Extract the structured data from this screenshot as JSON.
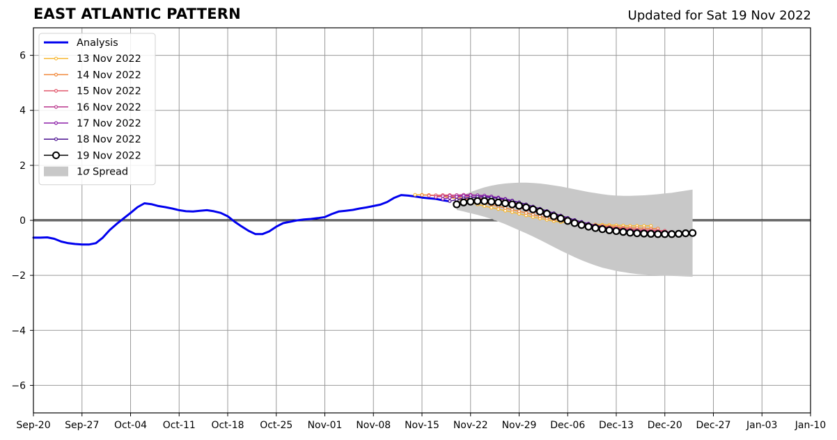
{
  "header": {
    "title": "EAST ATLANTIC PATTERN",
    "updated": "Updated for Sat 19 Nov 2022"
  },
  "chart_data": {
    "type": "line",
    "title": "EAST ATLANTIC PATTERN",
    "subtitle": "Updated for Sat 19 Nov 2022",
    "xlabel": "",
    "ylabel": "",
    "x_type": "date",
    "xlim": [
      "2022-09-20",
      "2023-01-10"
    ],
    "ylim": [
      -7,
      7
    ],
    "x_ticks": [
      "2022-09-20",
      "2022-09-27",
      "2022-10-04",
      "2022-10-11",
      "2022-10-18",
      "2022-10-25",
      "2022-11-01",
      "2022-11-08",
      "2022-11-15",
      "2022-11-22",
      "2022-11-29",
      "2022-12-06",
      "2022-12-13",
      "2022-12-20",
      "2022-12-27",
      "2023-01-03",
      "2023-01-10"
    ],
    "x_tick_labels": [
      "Sep-20",
      "Sep-27",
      "Oct-04",
      "Oct-11",
      "Oct-18",
      "Oct-25",
      "Nov-01",
      "Nov-08",
      "Nov-15",
      "Nov-22",
      "Nov-29",
      "Dec-06",
      "Dec-13",
      "Dec-20",
      "Dec-27",
      "Jan-03",
      "Jan-10"
    ],
    "y_ticks": [
      -6,
      -4,
      -2,
      0,
      2,
      4,
      6
    ],
    "y_tick_labels": [
      "−6",
      "−4",
      "−2",
      "0",
      "2",
      "4",
      "6"
    ],
    "grid": true,
    "zero_line": true,
    "legend_position": "top-left",
    "colors": {
      "analysis": "#0000ee",
      "spread": "#c8c8c8",
      "grid": "#999999"
    },
    "series": [
      {
        "name": "Analysis",
        "color": "#0000ee",
        "style": "thick-line",
        "points": [
          [
            "2022-09-20",
            -0.63
          ],
          [
            "2022-09-21",
            -0.63
          ],
          [
            "2022-09-22",
            -0.62
          ],
          [
            "2022-09-23",
            -0.67
          ],
          [
            "2022-09-24",
            -0.77
          ],
          [
            "2022-09-25",
            -0.83
          ],
          [
            "2022-09-26",
            -0.86
          ],
          [
            "2022-09-27",
            -0.88
          ],
          [
            "2022-09-28",
            -0.88
          ],
          [
            "2022-09-29",
            -0.83
          ],
          [
            "2022-09-30",
            -0.63
          ],
          [
            "2022-10-01",
            -0.35
          ],
          [
            "2022-10-02",
            -0.13
          ],
          [
            "2022-10-03",
            0.07
          ],
          [
            "2022-10-04",
            0.27
          ],
          [
            "2022-10-05",
            0.48
          ],
          [
            "2022-10-06",
            0.62
          ],
          [
            "2022-10-07",
            0.59
          ],
          [
            "2022-10-08",
            0.52
          ],
          [
            "2022-10-09",
            0.48
          ],
          [
            "2022-10-10",
            0.43
          ],
          [
            "2022-10-11",
            0.37
          ],
          [
            "2022-10-12",
            0.33
          ],
          [
            "2022-10-13",
            0.32
          ],
          [
            "2022-10-14",
            0.35
          ],
          [
            "2022-10-15",
            0.37
          ],
          [
            "2022-10-16",
            0.33
          ],
          [
            "2022-10-17",
            0.27
          ],
          [
            "2022-10-18",
            0.15
          ],
          [
            "2022-10-19",
            -0.05
          ],
          [
            "2022-10-20",
            -0.22
          ],
          [
            "2022-10-21",
            -0.38
          ],
          [
            "2022-10-22",
            -0.5
          ],
          [
            "2022-10-23",
            -0.5
          ],
          [
            "2022-10-24",
            -0.4
          ],
          [
            "2022-10-25",
            -0.23
          ],
          [
            "2022-10-26",
            -0.1
          ],
          [
            "2022-10-27",
            -0.05
          ],
          [
            "2022-10-28",
            0.0
          ],
          [
            "2022-10-29",
            0.03
          ],
          [
            "2022-10-30",
            0.05
          ],
          [
            "2022-10-31",
            0.08
          ],
          [
            "2022-11-01",
            0.12
          ],
          [
            "2022-11-02",
            0.23
          ],
          [
            "2022-11-03",
            0.32
          ],
          [
            "2022-11-04",
            0.35
          ],
          [
            "2022-11-05",
            0.38
          ],
          [
            "2022-11-06",
            0.43
          ],
          [
            "2022-11-07",
            0.47
          ],
          [
            "2022-11-08",
            0.52
          ],
          [
            "2022-11-09",
            0.57
          ],
          [
            "2022-11-10",
            0.67
          ],
          [
            "2022-11-11",
            0.82
          ],
          [
            "2022-11-12",
            0.92
          ],
          [
            "2022-11-13",
            0.9
          ],
          [
            "2022-11-14",
            0.87
          ],
          [
            "2022-11-15",
            0.83
          ],
          [
            "2022-11-16",
            0.8
          ],
          [
            "2022-11-17",
            0.78
          ],
          [
            "2022-11-18",
            0.73
          ],
          [
            "2022-11-19",
            0.69
          ]
        ]
      },
      {
        "name": "13 Nov 2022",
        "color": "#f7b731",
        "style": "small-markers",
        "start": "2022-11-14",
        "values": [
          0.93,
          0.93,
          0.92,
          0.9,
          0.87,
          0.83,
          0.78,
          0.72,
          0.65,
          0.58,
          0.52,
          0.46,
          0.41,
          0.35,
          0.3,
          0.24,
          0.18,
          0.12,
          0.07,
          0.02,
          -0.03,
          -0.06,
          -0.08,
          -0.1,
          -0.12,
          -0.14,
          -0.15,
          -0.16,
          -0.17,
          -0.18,
          -0.19,
          -0.2,
          -0.2,
          -0.2,
          -0.2
        ]
      },
      {
        "name": "14 Nov 2022",
        "color": "#f0883a",
        "style": "small-markers",
        "start": "2022-11-15",
        "values": [
          0.92,
          0.92,
          0.91,
          0.9,
          0.88,
          0.85,
          0.8,
          0.75,
          0.69,
          0.63,
          0.57,
          0.51,
          0.45,
          0.39,
          0.33,
          0.27,
          0.21,
          0.15,
          0.09,
          0.04,
          -0.01,
          -0.05,
          -0.09,
          -0.12,
          -0.15,
          -0.18,
          -0.2,
          -0.22,
          -0.24,
          -0.26,
          -0.27,
          -0.28,
          -0.29,
          -0.3,
          -0.3
        ]
      },
      {
        "name": "15 Nov 2022",
        "color": "#e1576b",
        "style": "small-markers",
        "start": "2022-11-16",
        "values": [
          0.9,
          0.91,
          0.92,
          0.92,
          0.91,
          0.89,
          0.86,
          0.82,
          0.77,
          0.72,
          0.66,
          0.6,
          0.53,
          0.46,
          0.39,
          0.32,
          0.25,
          0.18,
          0.11,
          0.05,
          -0.01,
          -0.06,
          -0.11,
          -0.15,
          -0.19,
          -0.22,
          -0.25,
          -0.28,
          -0.3,
          -0.32,
          -0.34,
          -0.35,
          -0.36,
          -0.37,
          -0.38
        ]
      },
      {
        "name": "16 Nov 2022",
        "color": "#b9358c",
        "style": "small-markers",
        "start": "2022-11-17",
        "values": [
          0.85,
          0.88,
          0.9,
          0.92,
          0.93,
          0.93,
          0.91,
          0.88,
          0.84,
          0.79,
          0.73,
          0.67,
          0.6,
          0.52,
          0.44,
          0.36,
          0.28,
          0.2,
          0.12,
          0.05,
          -0.02,
          -0.08,
          -0.14,
          -0.19,
          -0.23,
          -0.27,
          -0.3,
          -0.33,
          -0.35,
          -0.37,
          -0.39,
          -0.4,
          -0.41,
          -0.42,
          -0.42
        ]
      },
      {
        "name": "17 Nov 2022",
        "color": "#8b1fa7",
        "style": "small-markers",
        "start": "2022-11-18",
        "values": [
          0.78,
          0.82,
          0.86,
          0.89,
          0.91,
          0.91,
          0.9,
          0.87,
          0.83,
          0.78,
          0.72,
          0.65,
          0.58,
          0.5,
          0.42,
          0.33,
          0.25,
          0.17,
          0.09,
          0.01,
          -0.06,
          -0.12,
          -0.18,
          -0.23,
          -0.28,
          -0.32,
          -0.35,
          -0.38,
          -0.4,
          -0.42,
          -0.43,
          -0.44,
          -0.45,
          -0.45,
          -0.46
        ]
      },
      {
        "name": "18 Nov 2022",
        "color": "#4a0f8f",
        "style": "small-markers",
        "start": "2022-11-19",
        "values": [
          0.7,
          0.75,
          0.8,
          0.83,
          0.85,
          0.85,
          0.83,
          0.8,
          0.76,
          0.71,
          0.65,
          0.58,
          0.5,
          0.42,
          0.34,
          0.26,
          0.17,
          0.09,
          0.01,
          -0.06,
          -0.13,
          -0.19,
          -0.24,
          -0.29,
          -0.33,
          -0.36,
          -0.39,
          -0.41,
          -0.43,
          -0.45,
          -0.46,
          -0.47,
          -0.47,
          -0.48,
          -0.48
        ]
      },
      {
        "name": "19 Nov 2022",
        "color": "#000000",
        "style": "open-circles",
        "start": "2022-11-20",
        "values": [
          0.58,
          0.65,
          0.68,
          0.7,
          0.7,
          0.68,
          0.65,
          0.62,
          0.58,
          0.53,
          0.47,
          0.4,
          0.32,
          0.24,
          0.15,
          0.07,
          -0.02,
          -0.1,
          -0.17,
          -0.23,
          -0.28,
          -0.32,
          -0.36,
          -0.39,
          -0.42,
          -0.45,
          -0.47,
          -0.48,
          -0.49,
          -0.5,
          -0.5,
          -0.5,
          -0.49,
          -0.47,
          -0.46
        ]
      }
    ],
    "spread": {
      "name": "1σ Spread",
      "label_parts": [
        "1",
        "σ",
        " Spread"
      ],
      "start": "2022-11-20",
      "upper": [
        0.78,
        0.92,
        1.03,
        1.12,
        1.2,
        1.26,
        1.31,
        1.34,
        1.36,
        1.37,
        1.37,
        1.36,
        1.34,
        1.31,
        1.27,
        1.23,
        1.18,
        1.13,
        1.08,
        1.03,
        0.99,
        0.95,
        0.92,
        0.9,
        0.89,
        0.89,
        0.9,
        0.91,
        0.93,
        0.95,
        0.98,
        1.0,
        1.04,
        1.08,
        1.12
      ],
      "lower": [
        0.38,
        0.32,
        0.26,
        0.2,
        0.13,
        0.05,
        -0.04,
        -0.14,
        -0.25,
        -0.36,
        -0.47,
        -0.59,
        -0.71,
        -0.84,
        -0.97,
        -1.1,
        -1.22,
        -1.34,
        -1.45,
        -1.55,
        -1.64,
        -1.72,
        -1.78,
        -1.84,
        -1.88,
        -1.92,
        -1.95,
        -1.97,
        -1.99,
        -2.0,
        -2.01,
        -2.02,
        -2.03,
        -2.04,
        -2.05
      ]
    }
  }
}
